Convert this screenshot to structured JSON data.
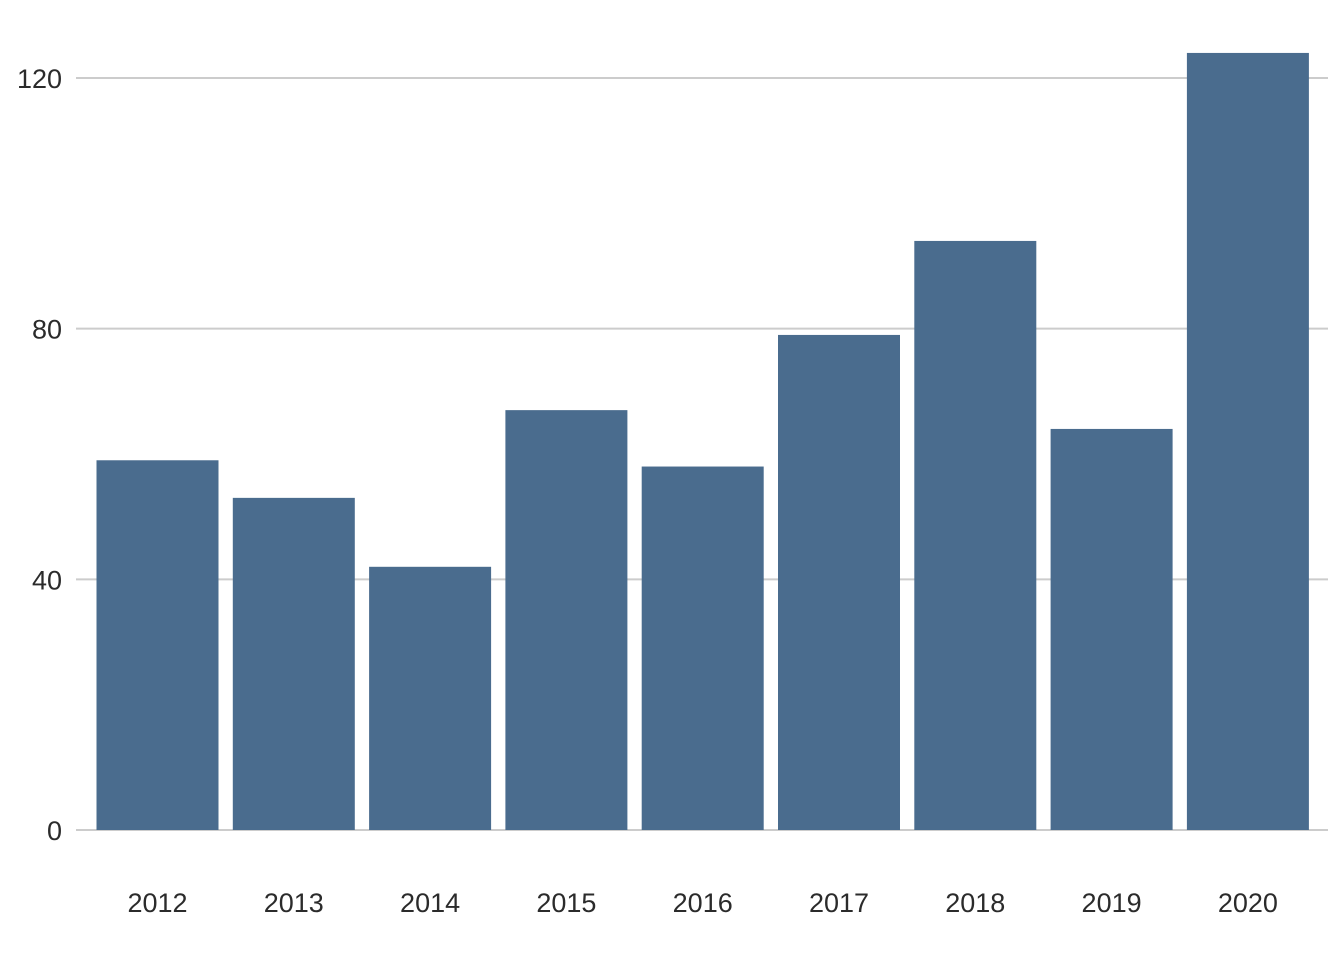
{
  "chart_data": {
    "type": "bar",
    "title": "",
    "xlabel": "",
    "ylabel": "",
    "categories": [
      "2012",
      "2013",
      "2014",
      "2015",
      "2016",
      "2017",
      "2018",
      "2019",
      "2020"
    ],
    "values": [
      59,
      53,
      42,
      67,
      58,
      79,
      94,
      64,
      124
    ],
    "ylim": [
      0,
      124
    ],
    "yticks": [
      0,
      40,
      80,
      120
    ],
    "ytick_labels": [
      "0",
      "40",
      "80",
      "120"
    ],
    "grid": "horizontal",
    "legend": "none",
    "colors": {
      "bar": "#4a6c8e",
      "grid": "#cccccc",
      "text": "#2b2b2b"
    }
  }
}
